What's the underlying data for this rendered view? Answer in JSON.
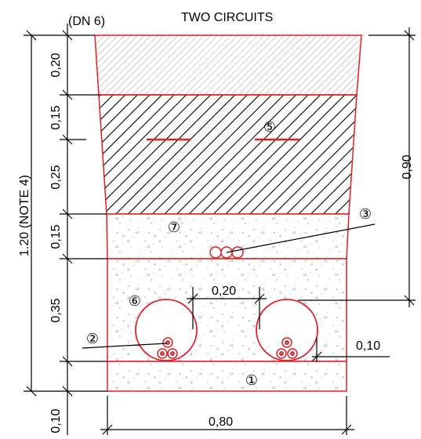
{
  "header": {
    "ref_label": "(DN 6)",
    "title": "TWO CIRCUITS"
  },
  "dimensions": {
    "left_total": "1.20 (NOTE 4)",
    "layer_1": "0,20",
    "layer_2": "0,15",
    "layer_3": "0,25",
    "layer_4": "0,15",
    "layer_5": "0,35",
    "layer_6": "0,10",
    "right_depth": "0,90",
    "duct_spacing": "0,20",
    "duct_clearance": "0,10",
    "bottom_width": "0,80"
  },
  "markers": {
    "m1": "①",
    "m2": "②",
    "m3": "③",
    "m5": "⑤",
    "m6": "⑥",
    "m7": "⑦"
  },
  "colors": {
    "outline": "#e31e24",
    "dimension": "#000000",
    "hatch_light": "#9a9a9a",
    "hatch_dark": "#000000",
    "cable_core": "#888888"
  }
}
